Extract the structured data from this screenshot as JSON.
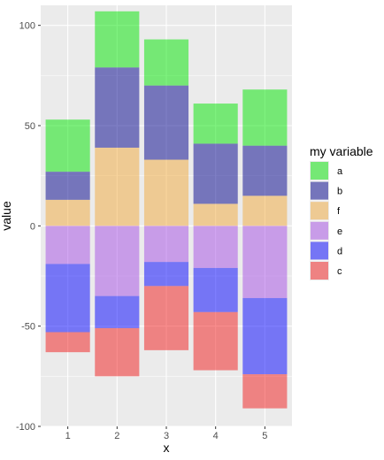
{
  "chart_data": {
    "type": "bar",
    "stacked": true,
    "xlabel": "x",
    "ylabel": "value",
    "categories": [
      "1",
      "2",
      "3",
      "4",
      "5"
    ],
    "ylim": [
      -100,
      110
    ],
    "yticks": [
      -100,
      -50,
      0,
      50,
      100
    ],
    "grid": true,
    "legend_title": "my variable",
    "legend_position": "right",
    "legend_entries": [
      "a",
      "b",
      "f",
      "e",
      "d",
      "c"
    ],
    "colors": {
      "a": "#00e600",
      "b": "#00008b",
      "f": "#f2a93b",
      "e": "#a64de6",
      "d": "#0000ff",
      "c": "#f21a1a"
    },
    "positive_stack_order": [
      "f",
      "b",
      "a"
    ],
    "negative_stack_order": [
      "e",
      "d",
      "c"
    ],
    "series": [
      {
        "name": "a",
        "values": [
          26,
          28,
          23,
          20,
          28
        ]
      },
      {
        "name": "b",
        "values": [
          14,
          40,
          37,
          30,
          25
        ]
      },
      {
        "name": "f",
        "values": [
          13,
          39,
          33,
          11,
          15
        ]
      },
      {
        "name": "e",
        "values": [
          -19,
          -35,
          -18,
          -21,
          -36
        ]
      },
      {
        "name": "d",
        "values": [
          -34,
          -16,
          -12,
          -22,
          -38
        ]
      },
      {
        "name": "c",
        "values": [
          -10,
          -24,
          -32,
          -29,
          -17
        ]
      }
    ]
  }
}
